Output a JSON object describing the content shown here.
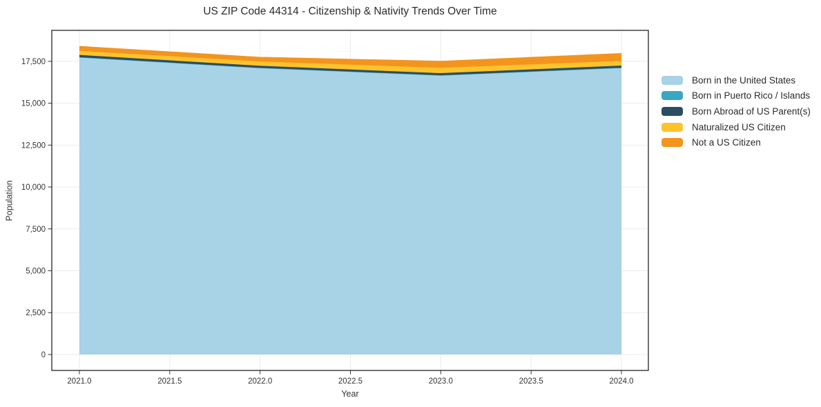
{
  "title": "US ZIP Code 44314 - Citizenship & Nativity Trends Over Time",
  "chart_data": {
    "type": "area",
    "stacked": true,
    "title": "US ZIP Code 44314 - Citizenship & Nativity Trends Over Time",
    "xlabel": "Year",
    "ylabel": "Population",
    "x": [
      2021,
      2022,
      2023,
      2024
    ],
    "series": [
      {
        "name": "Born in the United States",
        "color": "#a8d2e6",
        "values": [
          17730,
          17100,
          16660,
          17100
        ]
      },
      {
        "name": "Born in Puerto Rico / Islands",
        "color": "#3ba6c4",
        "values": [
          18,
          12,
          10,
          22
        ]
      },
      {
        "name": "Born Abroad of US Parent(s)",
        "color": "#2a4d61",
        "values": [
          135,
          125,
          125,
          125
        ]
      },
      {
        "name": "Naturalized US Citizen",
        "color": "#fcc32d",
        "values": [
          240,
          255,
          320,
          275
        ]
      },
      {
        "name": "Not a US Citizen",
        "color": "#f3941e",
        "values": [
          270,
          250,
          390,
          445
        ]
      }
    ],
    "x_ticks": [
      "2021.0",
      "2021.5",
      "2022.0",
      "2022.5",
      "2023.0",
      "2023.5",
      "2024.0"
    ],
    "y_ticks": [
      "0",
      "2,500",
      "5,000",
      "7,500",
      "10,000",
      "12,500",
      "15,000",
      "17,500"
    ],
    "ylim": [
      -950,
      19350
    ],
    "xlim": [
      2021,
      2024
    ],
    "grid": true,
    "legend_position": "right",
    "grid_color": "#ebebeb",
    "border_color": "#222222"
  }
}
